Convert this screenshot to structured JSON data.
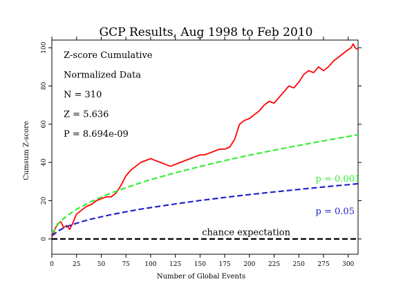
{
  "chart_data": {
    "type": "line",
    "title": "GCP Results, Aug 1998 to Feb 2010",
    "xlabel": "Number of Global Events",
    "ylabel": "Cumsum Z-score",
    "xlim": [
      0,
      310
    ],
    "ylim": [
      -8,
      104
    ],
    "xticks": [
      0,
      25,
      50,
      75,
      100,
      125,
      150,
      175,
      200,
      225,
      250,
      275,
      300
    ],
    "yticks": [
      0,
      20,
      40,
      60,
      80,
      100
    ],
    "grid": false,
    "legend": "none",
    "stats": [
      "Z-score Cumulative",
      "Normalized Data",
      "N = 310",
      "Z = 5.636",
      "P = 8.694e-09"
    ],
    "series": [
      {
        "name": "",
        "color": "#ff0000",
        "style": "solid",
        "x": [
          0,
          3,
          6,
          9,
          12,
          15,
          18,
          21,
          25,
          30,
          35,
          40,
          45,
          50,
          55,
          60,
          65,
          70,
          75,
          80,
          85,
          90,
          95,
          100,
          105,
          110,
          115,
          120,
          125,
          130,
          135,
          140,
          145,
          150,
          155,
          160,
          165,
          170,
          175,
          180,
          185,
          190,
          195,
          200,
          205,
          210,
          215,
          220,
          225,
          230,
          235,
          240,
          245,
          250,
          255,
          260,
          265,
          270,
          275,
          280,
          285,
          290,
          295,
          300,
          303,
          305,
          307,
          310
        ],
        "y": [
          1,
          5,
          8,
          9,
          6,
          7,
          5,
          8,
          13,
          15,
          17,
          18,
          20,
          21,
          22,
          22,
          24,
          28,
          33,
          36,
          38,
          40,
          41,
          42,
          41,
          40,
          39,
          38,
          39,
          40,
          41,
          42,
          43,
          44,
          44,
          45,
          46,
          47,
          47,
          48,
          52,
          60,
          62,
          63,
          65,
          67,
          70,
          72,
          71,
          74,
          77,
          80,
          79,
          82,
          86,
          88,
          87,
          90,
          88,
          90,
          93,
          95,
          97,
          99,
          100,
          102,
          100,
          99
        ]
      },
      {
        "name": "",
        "color": "#33ee33",
        "style": "dashed",
        "label": "p = 0.001",
        "x": [
          0,
          2,
          5,
          10,
          15,
          20,
          25,
          30,
          40,
          50,
          60,
          75,
          90,
          100,
          125,
          150,
          175,
          200,
          225,
          250,
          275,
          300,
          310
        ],
        "y": [
          3,
          4.3,
          6.9,
          9.8,
          12.0,
          13.8,
          15.5,
          16.9,
          19.6,
          21.9,
          24.0,
          26.8,
          29.4,
          31.0,
          34.6,
          37.9,
          41.0,
          43.8,
          46.4,
          48.9,
          51.3,
          53.6,
          54.5
        ]
      },
      {
        "name": "",
        "color": "#2222cc",
        "style": "dashed",
        "label": "p = 0.05",
        "x": [
          0,
          2,
          5,
          10,
          15,
          20,
          25,
          30,
          40,
          50,
          60,
          75,
          90,
          100,
          125,
          150,
          175,
          200,
          225,
          250,
          275,
          300,
          310
        ],
        "y": [
          2,
          2.3,
          3.7,
          5.2,
          6.4,
          7.4,
          8.2,
          9.0,
          10.4,
          11.6,
          12.7,
          14.2,
          15.6,
          16.4,
          18.3,
          20.1,
          21.7,
          23.2,
          24.6,
          25.9,
          27.2,
          28.4,
          28.9
        ]
      },
      {
        "name": "",
        "color": "#000000",
        "style": "dashed",
        "label": "chance expectation",
        "x": [
          0,
          310
        ],
        "y": [
          0,
          0
        ]
      }
    ]
  }
}
